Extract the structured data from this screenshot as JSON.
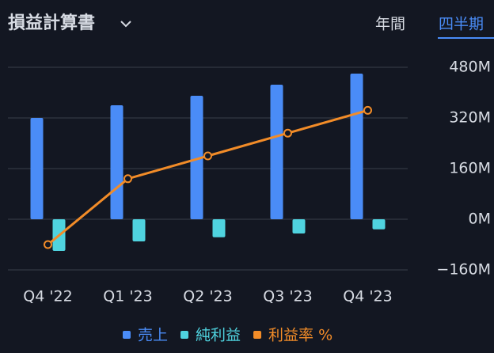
{
  "header": {
    "title": "損益計算書",
    "tabs": [
      "年間",
      "四半期"
    ],
    "selected_tab": 1
  },
  "chart_data": {
    "type": "bar",
    "categories": [
      "Q4 '22",
      "Q1 '23",
      "Q2 '23",
      "Q3 '23",
      "Q4 '23"
    ],
    "series": [
      {
        "name": "売上",
        "color": "#4a8cf7",
        "values": [
          320,
          360,
          390,
          425,
          460
        ]
      },
      {
        "name": "純利益",
        "color": "#4fd3df",
        "values": [
          -100,
          -70,
          -57,
          -45,
          -32
        ]
      },
      {
        "name": "利益率 %",
        "color": "#f28c28",
        "type": "line",
        "axis": "y2",
        "values": [
          -30,
          -17,
          -12.5,
          -8,
          -3.5
        ]
      }
    ],
    "ylim": [
      -160,
      480
    ],
    "yticks": [
      {
        "value": -160,
        "label": "−160M"
      },
      {
        "value": 0,
        "label": "0M"
      },
      {
        "value": 160,
        "label": "160M"
      },
      {
        "value": 320,
        "label": "320M"
      },
      {
        "value": 480,
        "label": "480M"
      }
    ],
    "y2lim": [
      -35,
      5
    ],
    "grid": true,
    "legend": "bottom"
  }
}
